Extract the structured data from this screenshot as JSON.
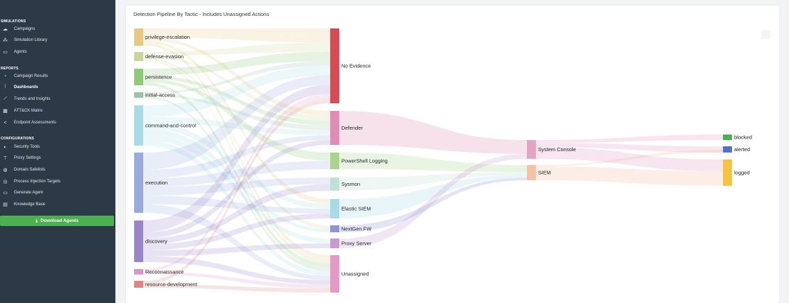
{
  "sidebar": {
    "sections": {
      "simulations": "SIMULATIONS",
      "reports": "REPORTS",
      "configurations": "CONFIGURATIONS"
    },
    "items": [
      {
        "label": "Campaigns",
        "icon": "cloud-icon"
      },
      {
        "label": "Simulation Library",
        "icon": "library-icon"
      },
      {
        "label": "Agents",
        "icon": "monitor-icon"
      },
      {
        "label": "Campaign Results",
        "icon": "pie-icon"
      },
      {
        "label": "Dashboards",
        "icon": "dashboard-icon"
      },
      {
        "label": "Trends and Insights",
        "icon": "trend-icon"
      },
      {
        "label": "ATT&CK Matrix",
        "icon": "grid-icon"
      },
      {
        "label": "Endpoint Assessments",
        "icon": "share-icon"
      },
      {
        "label": "Security Tools",
        "icon": "shield-icon"
      },
      {
        "label": "Proxy Settings",
        "icon": "proxy-icon"
      },
      {
        "label": "Domain Safelists",
        "icon": "globe-icon"
      },
      {
        "label": "Process Injection Targets",
        "icon": "target-icon"
      },
      {
        "label": "Generate Agent",
        "icon": "monitor-icon"
      },
      {
        "label": "Knowledge Base",
        "icon": "book-icon"
      }
    ],
    "download_label": "Download Agents"
  },
  "card": {
    "title": "Detection Pipeline By Tactic - Includes Unassigned Actions"
  },
  "sankey": {
    "tactics": [
      {
        "label": "privilege-escalation",
        "color": "#e8c882"
      },
      {
        "label": "defense-evasion",
        "color": "#c9d49a"
      },
      {
        "label": "persistence",
        "color": "#8fca78"
      },
      {
        "label": "initial-access",
        "color": "#9bc3a8"
      },
      {
        "label": "command-and-control",
        "color": "#a8dbe6"
      },
      {
        "label": "execution",
        "color": "#98abdb"
      },
      {
        "label": "discovery",
        "color": "#9c84c8"
      },
      {
        "label": "Reconnaissance",
        "color": "#d49ac9"
      },
      {
        "label": "resource-development",
        "color": "#e08582"
      }
    ],
    "tools": [
      {
        "label": "No Evidence",
        "color": "#d94b52"
      },
      {
        "label": "Defender",
        "color": "#e08cb5"
      },
      {
        "label": "PowerShell Logging",
        "color": "#a8d48e"
      },
      {
        "label": "Sysmon",
        "color": "#bfe0d4"
      },
      {
        "label": "Elastic SIEM",
        "color": "#a8dbe8"
      },
      {
        "label": "NextGen FW",
        "color": "#8f93d9"
      },
      {
        "label": "Proxy Server",
        "color": "#c99ad0"
      },
      {
        "label": "Unassigned",
        "color": "#e39ac4"
      }
    ],
    "collectors": [
      {
        "label": "System Console",
        "color": "#e3a3c4"
      },
      {
        "label": "SIEM",
        "color": "#f5c2a8"
      }
    ],
    "outcomes": [
      {
        "label": "blocked",
        "color": "#4caf50"
      },
      {
        "label": "alerted",
        "color": "#4f73c6"
      },
      {
        "label": "logged",
        "color": "#f5c242"
      }
    ]
  }
}
